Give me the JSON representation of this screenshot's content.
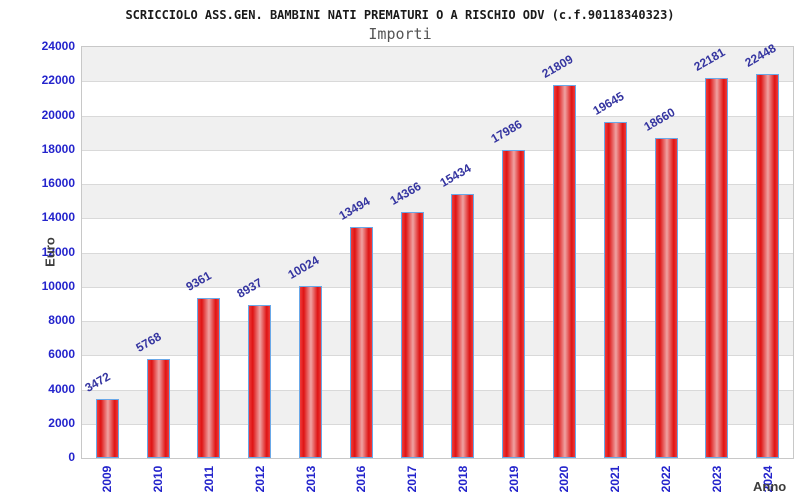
{
  "header": {
    "title": "SCRICCIOLO ASS.GEN. BAMBINI NATI PREMATURI O A RISCHIO ODV (c.f.90118340323)",
    "subtitle": "Importi"
  },
  "chart_data": {
    "type": "bar",
    "title": "SCRICCIOLO ASS.GEN. BAMBINI NATI PREMATURI O A RISCHIO ODV (c.f.90118340323)",
    "subtitle": "Importi",
    "xlabel": "Anno",
    "ylabel": "Euro",
    "categories": [
      "2009",
      "2010",
      "2011",
      "2012",
      "2013",
      "2016",
      "2017",
      "2018",
      "2019",
      "2020",
      "2021",
      "2022",
      "2023",
      "2024"
    ],
    "values": [
      3472,
      5768,
      9361,
      8937,
      10024,
      13494,
      14366,
      15434,
      17986,
      21809,
      19645,
      18660,
      22181,
      22448
    ],
    "ylim": [
      0,
      24000
    ],
    "ytick_step": 2000,
    "yticks": [
      0,
      2000,
      4000,
      6000,
      8000,
      10000,
      12000,
      14000,
      16000,
      18000,
      20000,
      22000,
      24000
    ],
    "grid": "horizontal-bands-alternating",
    "legend": "none",
    "colors": {
      "bar_fill_edge": "#de1414",
      "bar_fill_center": "#efa2a2",
      "bar_border": "#69a8e8",
      "tick_label": "#2424cc",
      "value_label": "#3434a0",
      "band_gray": "#f0f0f0",
      "band_white": "#ffffff",
      "gridline": "#d9d9d9",
      "plot_border": "#c8c8c8",
      "title_color": "#1a1a1a",
      "subtitle_color": "#555555",
      "axis_label_color": "#3c3c3c"
    }
  }
}
